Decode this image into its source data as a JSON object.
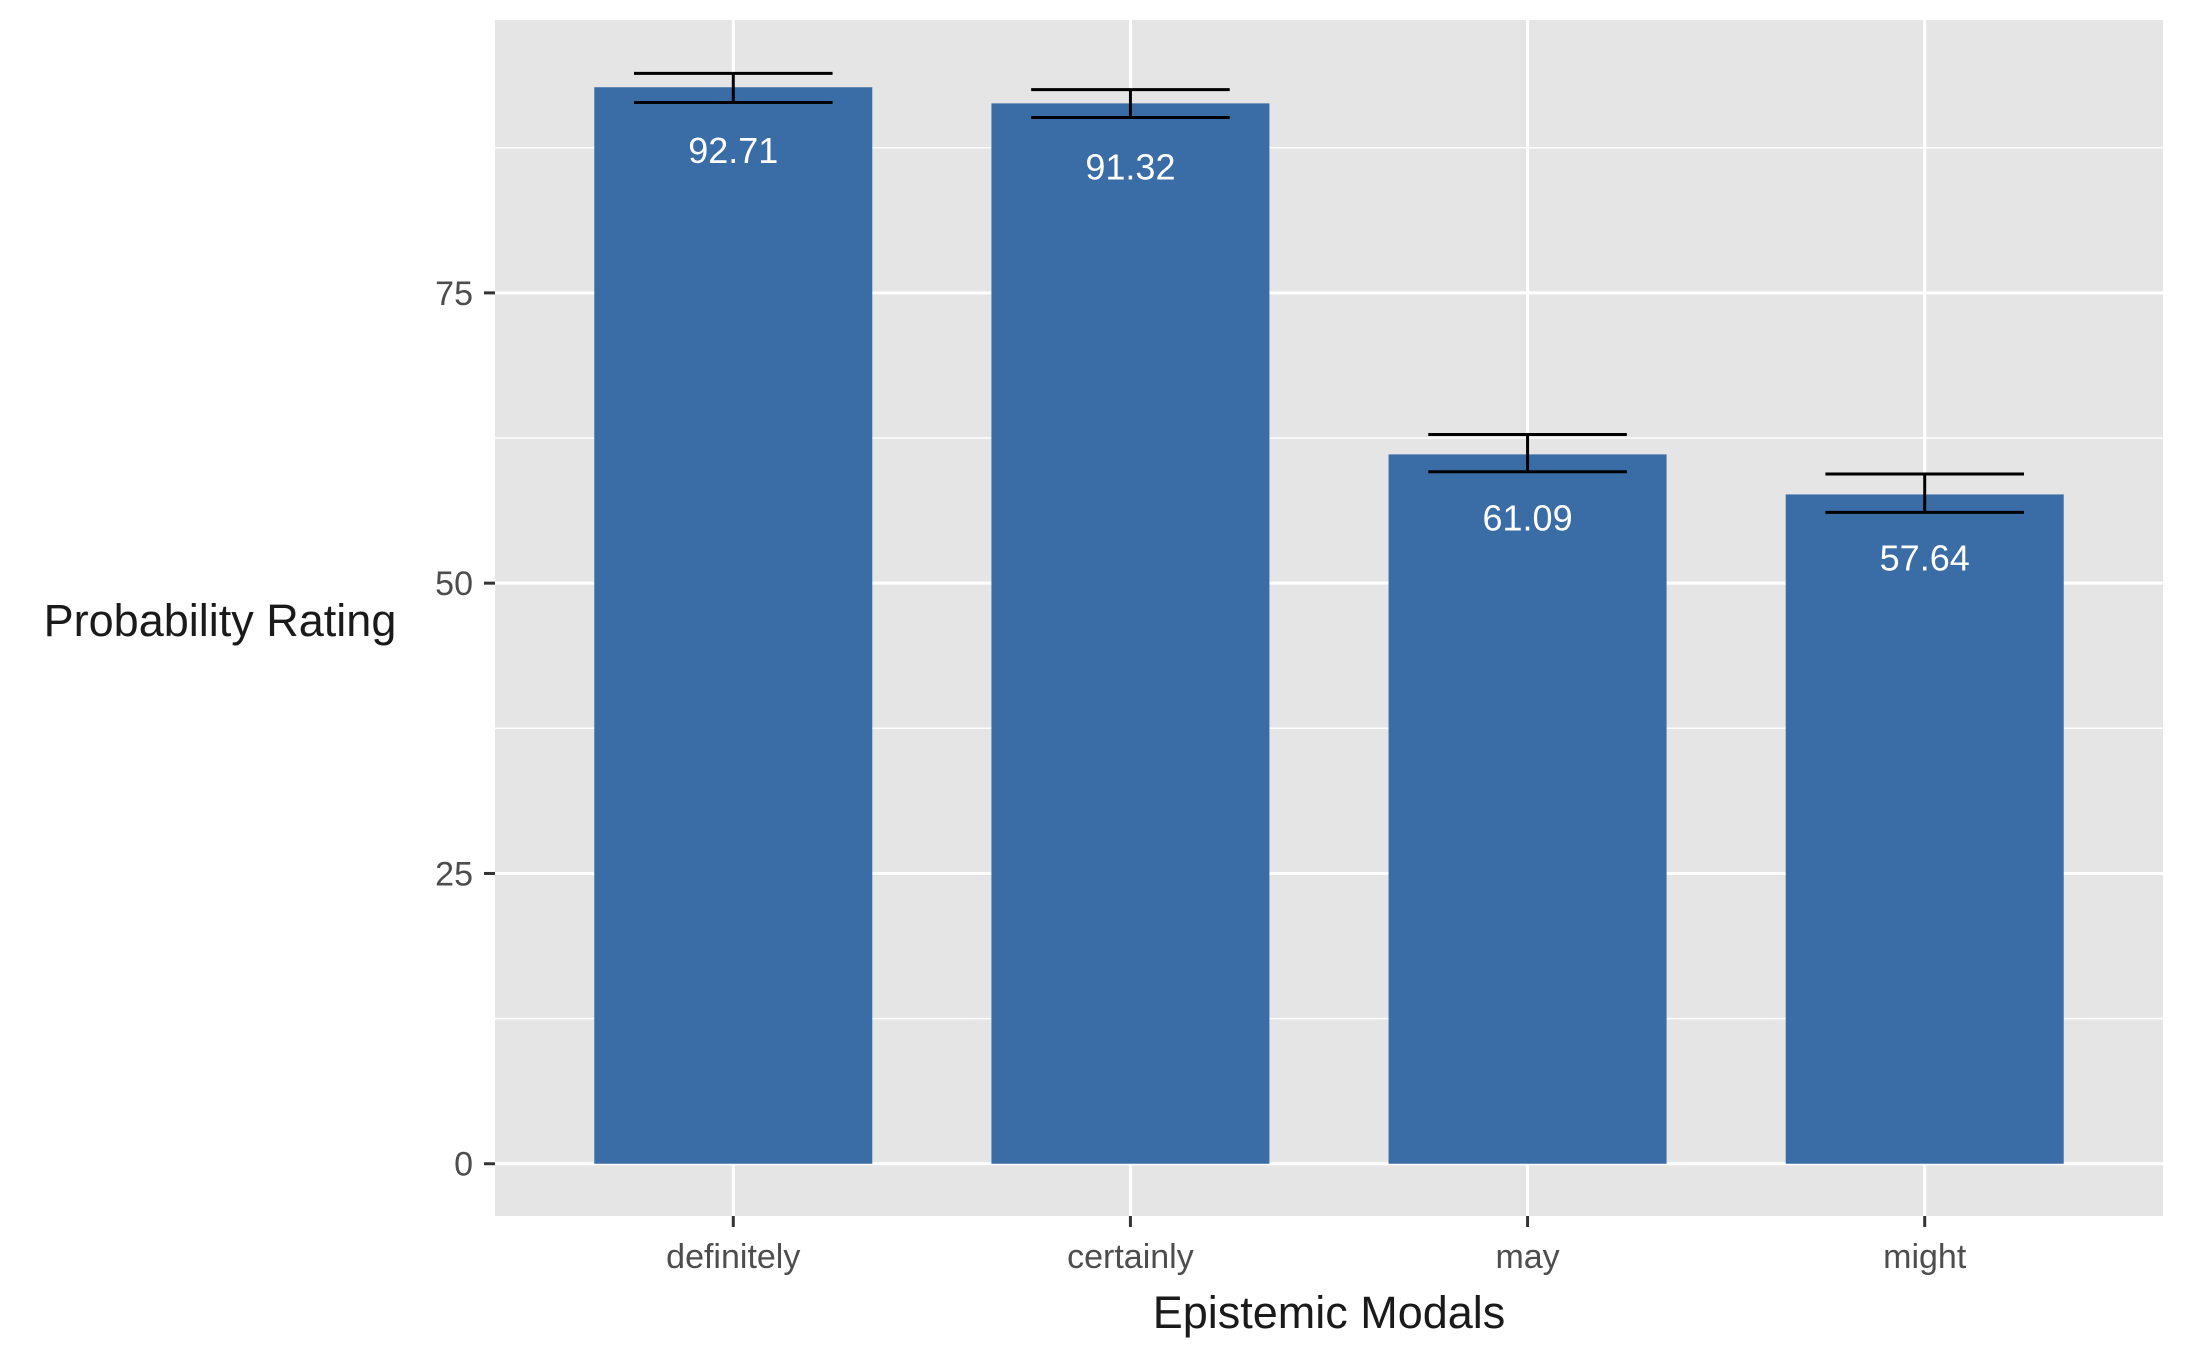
{
  "chart_data": {
    "type": "bar",
    "title": "",
    "xlabel": "Epistemic Modals",
    "ylabel": "Probability Rating",
    "categories": [
      "definitely",
      "certainly",
      "may",
      "might"
    ],
    "values": [
      92.71,
      91.32,
      61.09,
      57.64
    ],
    "value_labels": [
      "92.71",
      "91.32",
      "61.09",
      "57.64"
    ],
    "error_bars": [
      {
        "low": 91.4,
        "high": 93.9
      },
      {
        "low": 90.1,
        "high": 92.5
      },
      {
        "low": 59.6,
        "high": 62.8
      },
      {
        "low": 56.1,
        "high": 59.4
      }
    ],
    "ylim": [
      -4.5,
      98.5
    ],
    "yticks": [
      0,
      25,
      50,
      75
    ],
    "ytick_labels": [
      "0",
      "25",
      "50",
      "75"
    ],
    "grid": true,
    "legend": "none",
    "colors": {
      "bar": "#3a6ca6",
      "panel": "#e5e5e5",
      "grid": "#ffffff",
      "errorbar": "#000000",
      "bar_label": "#ffffff"
    }
  }
}
